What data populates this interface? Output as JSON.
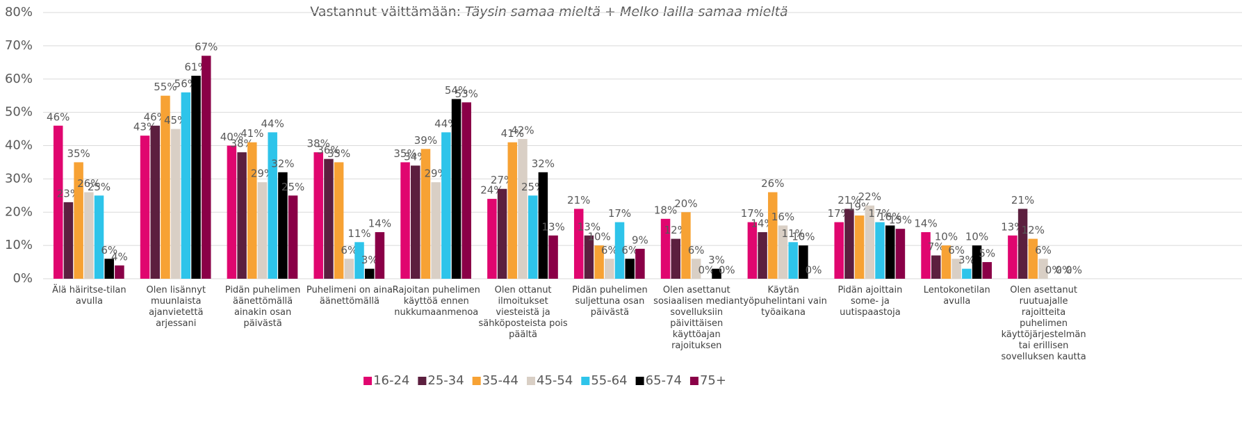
{
  "chart_data": {
    "type": "bar",
    "title": "Vastannut väittämään:",
    "title_italic": "Täysin samaa mieltä + Melko lailla samaa mieltä",
    "categories": [
      "Älä häiritse-tilan avulla",
      "Olen lisännyt muunlaista ajanvietettä arjessani",
      "Pidän puhelimen äänettömällä ainakin osan päivästä",
      "Puhelimeni on aina äänettömällä",
      "Rajoitan puhelimen käyttöä ennen nukkumaanmenoa",
      "Olen ottanut ilmoitukset viesteistä ja sähköposteista pois päältä",
      "Pidän puhelimen suljettuna osan päivästä",
      "Olen asettanut sosiaalisen median sovelluksiin päivittäisen käyttöajan rajoituksen",
      "Käytän työpuhelintani vain työaikana",
      "Pidän ajoittain some- ja uutispaastoja",
      "Lentokonetilan avulla",
      "Olen asettanut ruutuajalle rajoitteita puhelimen käyttöjärjestelmän tai erillisen sovelluksen kautta"
    ],
    "series": [
      {
        "name": "16-24",
        "color": "#e0066f",
        "values": [
          46,
          43,
          40,
          38,
          35,
          24,
          21,
          18,
          17,
          17,
          14,
          13
        ],
        "value_labels": [
          "46%",
          "43%",
          "40%",
          "38%",
          "35%",
          "24%",
          "21%",
          "18%",
          "17%",
          "17%",
          "14%",
          "13%"
        ]
      },
      {
        "name": "25-34",
        "color": "#5c1f3f",
        "values": [
          23,
          46,
          38,
          36,
          34,
          27,
          13,
          12,
          14,
          21,
          7,
          21
        ],
        "value_labels": [
          "23%",
          "46%",
          "38%",
          "36%",
          "34%",
          "27%",
          "13%",
          "12%",
          "14%",
          "21%",
          "7%",
          "21%"
        ]
      },
      {
        "name": "35-44",
        "color": "#f7a234",
        "values": [
          35,
          55,
          41,
          35,
          39,
          41,
          10,
          20,
          26,
          19,
          10,
          12
        ],
        "value_labels": [
          "35%",
          "55%",
          "41%",
          "35%",
          "39%",
          "41%",
          "10%",
          "20%",
          "26%",
          "19%",
          "10%",
          "12%"
        ]
      },
      {
        "name": "45-54",
        "color": "#d9cfc5",
        "values": [
          26,
          45,
          29,
          6,
          29,
          42,
          6,
          6,
          16,
          22,
          6,
          6
        ],
        "value_labels": [
          "26%",
          "45%",
          "29%",
          "6%",
          "29%",
          "42%",
          "6%",
          "6%",
          "16%",
          "22%",
          "6%",
          "6%"
        ]
      },
      {
        "name": "55-64",
        "color": "#2ec4ea",
        "values": [
          25,
          56,
          44,
          11,
          44,
          25,
          17,
          0,
          11,
          17,
          3,
          0
        ],
        "value_labels": [
          "25%",
          "56%",
          "44%",
          "11%",
          "44%",
          "25%",
          "17%",
          "0%",
          "11%",
          "17%",
          "3%",
          "0%"
        ]
      },
      {
        "name": "65-74",
        "color": "#000000",
        "values": [
          6,
          61,
          32,
          3,
          54,
          32,
          6,
          3,
          10,
          16,
          10,
          0
        ],
        "value_labels": [
          "6%",
          "61%",
          "32%",
          "3%",
          "54%",
          "32%",
          "6%",
          "3%",
          "10%",
          "16%",
          "10%",
          "0%"
        ]
      },
      {
        "name": "75+",
        "color": "#8a0047",
        "values": [
          4,
          67,
          25,
          14,
          53,
          13,
          9,
          0,
          0,
          15,
          5,
          0
        ],
        "value_labels": [
          "4%",
          "67%",
          "25%",
          "14%",
          "53%",
          "13%",
          "9%",
          "0%",
          "0%",
          "15%",
          "5%",
          "0%"
        ]
      }
    ],
    "ylim": [
      0,
      80
    ],
    "yticks": [
      {
        "value": 0,
        "label": "0%"
      },
      {
        "value": 10,
        "label": "10%"
      },
      {
        "value": 20,
        "label": "20%"
      },
      {
        "value": 30,
        "label": "30%"
      },
      {
        "value": 40,
        "label": "40%"
      },
      {
        "value": 50,
        "label": "50%"
      },
      {
        "value": 60,
        "label": "60%"
      },
      {
        "value": 70,
        "label": "70%"
      },
      {
        "value": 80,
        "label": "80%"
      }
    ],
    "grid": true,
    "legend": "bottom"
  }
}
